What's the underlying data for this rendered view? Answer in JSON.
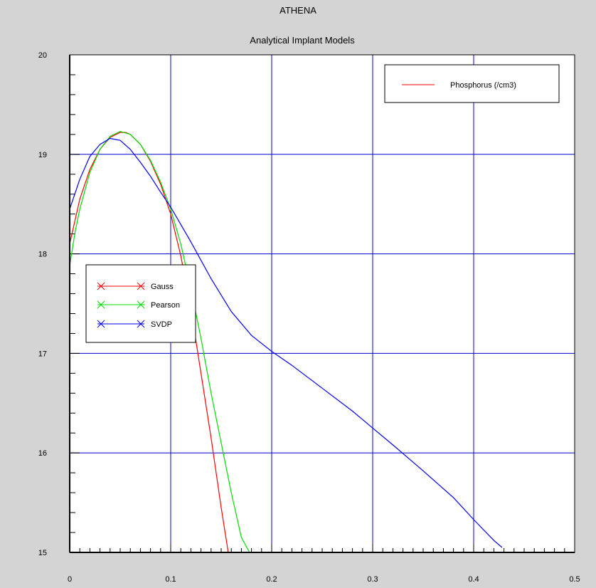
{
  "window": {
    "title": "ATHENA",
    "subtitle": "Analytical Implant Models"
  },
  "colors": {
    "background": "#d4d4d4",
    "plot_bg": "#ffffff",
    "grid": "#0000cc",
    "gauss": "#ff0000",
    "pearson": "#00dd00",
    "svdp": "#0000ff",
    "phosphorus": "#ff0000"
  },
  "chart_data": {
    "type": "line",
    "title": "Analytical Implant Models",
    "xlabel": "",
    "ylabel": "",
    "xlim": [
      0,
      0.5
    ],
    "ylim": [
      15,
      20
    ],
    "x_ticks": [
      "0",
      "0.1",
      "0.2",
      "0.3",
      "0.4",
      "0.5"
    ],
    "y_ticks": [
      "15",
      "16",
      "17",
      "18",
      "19",
      "20"
    ],
    "grid": true,
    "legends": [
      {
        "placement": "top-right",
        "entries": [
          {
            "label": "Phosphorus (/cm3)",
            "color": "#ff0000",
            "marker": "none"
          }
        ]
      },
      {
        "placement": "middle-left",
        "entries": [
          {
            "label": "Gauss",
            "color": "#ff0000",
            "marker": "x"
          },
          {
            "label": "Pearson",
            "color": "#00dd00",
            "marker": "x"
          },
          {
            "label": "SVDP",
            "color": "#0000ff",
            "marker": "x"
          }
        ]
      }
    ],
    "series": [
      {
        "name": "Gauss",
        "color": "#ff0000",
        "x": [
          0,
          0.01,
          0.02,
          0.03,
          0.04,
          0.05,
          0.055,
          0.06,
          0.07,
          0.08,
          0.09,
          0.1,
          0.11,
          0.12,
          0.13,
          0.14,
          0.15,
          0.157
        ],
        "y": [
          18.1,
          18.55,
          18.85,
          19.05,
          19.17,
          19.22,
          19.22,
          19.2,
          19.1,
          18.93,
          18.7,
          18.4,
          17.98,
          17.45,
          16.8,
          16.15,
          15.45,
          15.0
        ]
      },
      {
        "name": "Pearson",
        "color": "#00dd00",
        "x": [
          0,
          0.005,
          0.01,
          0.02,
          0.03,
          0.04,
          0.05,
          0.06,
          0.07,
          0.08,
          0.09,
          0.1,
          0.11,
          0.12,
          0.13,
          0.14,
          0.15,
          0.16,
          0.17,
          0.178
        ],
        "y": [
          17.88,
          18.2,
          18.45,
          18.82,
          19.05,
          19.18,
          19.23,
          19.2,
          19.1,
          18.94,
          18.72,
          18.45,
          18.1,
          17.65,
          17.15,
          16.6,
          16.1,
          15.6,
          15.15,
          15.0
        ]
      },
      {
        "name": "SVDP",
        "color": "#0000ff",
        "x": [
          0,
          0.01,
          0.02,
          0.03,
          0.04,
          0.05,
          0.06,
          0.07,
          0.08,
          0.09,
          0.1,
          0.12,
          0.14,
          0.16,
          0.18,
          0.2,
          0.22,
          0.25,
          0.28,
          0.3,
          0.32,
          0.35,
          0.38,
          0.4,
          0.42,
          0.428
        ],
        "y": [
          18.45,
          18.75,
          18.98,
          19.1,
          19.16,
          19.14,
          19.05,
          18.92,
          18.78,
          18.62,
          18.47,
          18.12,
          17.75,
          17.42,
          17.18,
          17.02,
          16.88,
          16.65,
          16.42,
          16.25,
          16.08,
          15.82,
          15.55,
          15.33,
          15.12,
          15.05
        ]
      }
    ]
  }
}
